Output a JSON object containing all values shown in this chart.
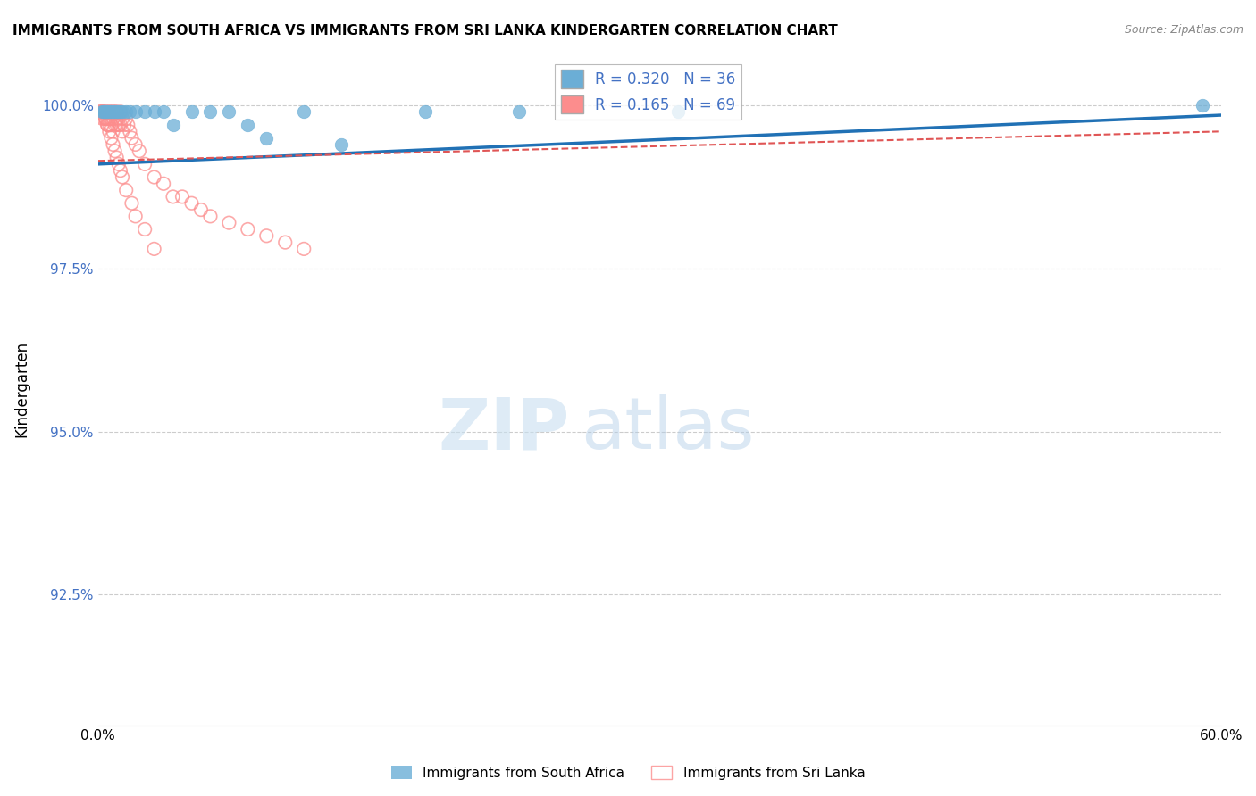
{
  "title": "IMMIGRANTS FROM SOUTH AFRICA VS IMMIGRANTS FROM SRI LANKA KINDERGARTEN CORRELATION CHART",
  "source": "Source: ZipAtlas.com",
  "ylabel": "Kindergarten",
  "xlim": [
    0.0,
    0.6
  ],
  "ylim": [
    0.905,
    1.008
  ],
  "yticks": [
    0.925,
    0.95,
    0.975,
    1.0
  ],
  "ytick_labels": [
    "92.5%",
    "95.0%",
    "97.5%",
    "100.0%"
  ],
  "xtick_positions": [
    0.0,
    0.1,
    0.2,
    0.3,
    0.4,
    0.5,
    0.6
  ],
  "xtick_labels": [
    "0.0%",
    "",
    "",
    "",
    "",
    "",
    "60.0%"
  ],
  "color_sa": "#6baed6",
  "color_sl": "#fc8d8d",
  "color_sa_fill": "#6baed6",
  "color_sl_fill": "none",
  "color_sa_line": "#2171b5",
  "color_sl_line": "#e05555",
  "watermark_zip": "ZIP",
  "watermark_atlas": "atlas",
  "sa_x": [
    0.002,
    0.003,
    0.003,
    0.004,
    0.004,
    0.005,
    0.005,
    0.006,
    0.007,
    0.007,
    0.008,
    0.008,
    0.009,
    0.01,
    0.01,
    0.011,
    0.012,
    0.013,
    0.015,
    0.017,
    0.02,
    0.025,
    0.03,
    0.035,
    0.04,
    0.05,
    0.06,
    0.07,
    0.08,
    0.09,
    0.11,
    0.13,
    0.175,
    0.225,
    0.59,
    0.31
  ],
  "sa_y": [
    0.999,
    0.999,
    0.999,
    0.999,
    0.999,
    0.999,
    0.999,
    0.999,
    0.999,
    0.999,
    0.999,
    0.999,
    0.999,
    0.999,
    0.999,
    0.999,
    0.999,
    0.999,
    0.999,
    0.999,
    0.999,
    0.999,
    0.999,
    0.999,
    0.997,
    0.999,
    0.999,
    0.999,
    0.997,
    0.995,
    0.999,
    0.994,
    0.999,
    0.999,
    1.0,
    0.999
  ],
  "sl_x": [
    0.001,
    0.001,
    0.002,
    0.002,
    0.002,
    0.003,
    0.003,
    0.003,
    0.004,
    0.004,
    0.004,
    0.005,
    0.005,
    0.005,
    0.006,
    0.006,
    0.006,
    0.007,
    0.007,
    0.007,
    0.008,
    0.008,
    0.008,
    0.009,
    0.009,
    0.01,
    0.01,
    0.01,
    0.011,
    0.011,
    0.012,
    0.012,
    0.013,
    0.013,
    0.014,
    0.015,
    0.016,
    0.017,
    0.018,
    0.02,
    0.022,
    0.025,
    0.03,
    0.035,
    0.04,
    0.045,
    0.05,
    0.055,
    0.06,
    0.07,
    0.08,
    0.09,
    0.1,
    0.11,
    0.004,
    0.005,
    0.006,
    0.007,
    0.008,
    0.009,
    0.01,
    0.011,
    0.012,
    0.013,
    0.015,
    0.018,
    0.02,
    0.025,
    0.03
  ],
  "sl_y": [
    0.999,
    0.999,
    0.999,
    0.999,
    0.998,
    0.999,
    0.998,
    0.999,
    0.999,
    0.998,
    0.998,
    0.999,
    0.998,
    0.997,
    0.999,
    0.998,
    0.997,
    0.999,
    0.998,
    0.997,
    0.999,
    0.998,
    0.996,
    0.999,
    0.997,
    0.999,
    0.998,
    0.997,
    0.998,
    0.997,
    0.999,
    0.997,
    0.998,
    0.996,
    0.997,
    0.998,
    0.997,
    0.996,
    0.995,
    0.994,
    0.993,
    0.991,
    0.989,
    0.988,
    0.986,
    0.986,
    0.985,
    0.984,
    0.983,
    0.982,
    0.981,
    0.98,
    0.979,
    0.978,
    0.998,
    0.997,
    0.996,
    0.995,
    0.994,
    0.993,
    0.992,
    0.991,
    0.99,
    0.989,
    0.987,
    0.985,
    0.983,
    0.981,
    0.978
  ]
}
